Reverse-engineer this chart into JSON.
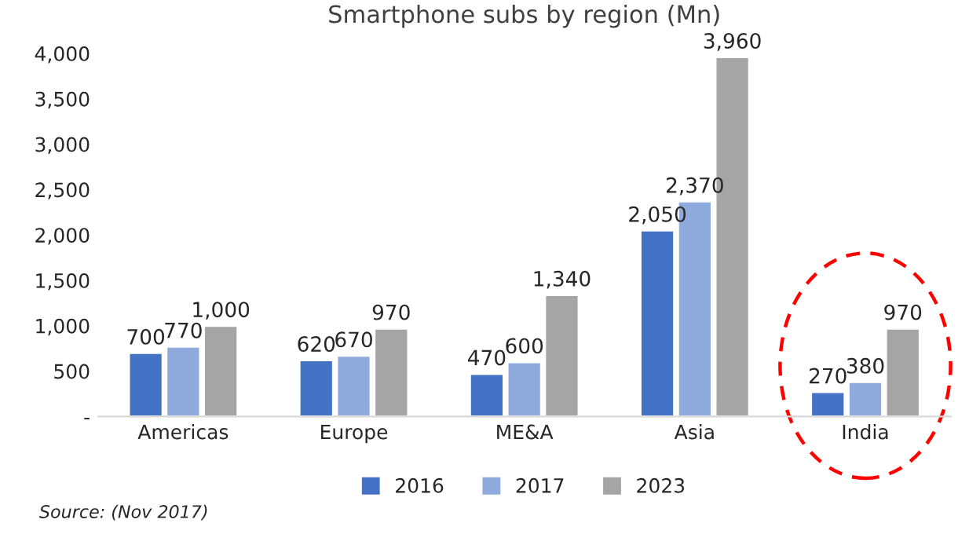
{
  "chart_data": {
    "type": "bar",
    "title": "Smartphone subs by region (Mn)",
    "categories": [
      "Americas",
      "Europe",
      "ME&A",
      "Asia",
      "India"
    ],
    "series": [
      {
        "name": "2016",
        "color": "#4472c4",
        "values": [
          700,
          620,
          470,
          2050,
          270
        ]
      },
      {
        "name": "2017",
        "color": "#8faadc",
        "values": [
          770,
          670,
          600,
          2370,
          380
        ]
      },
      {
        "name": "2023",
        "color": "#a5a5a5",
        "values": [
          1000,
          970,
          1340,
          3960,
          970
        ]
      }
    ],
    "ylim": [
      0,
      4000
    ],
    "yticks": [
      {
        "value": 0,
        "label": "-"
      },
      {
        "value": 500,
        "label": "500"
      },
      {
        "value": 1000,
        "label": "1,000"
      },
      {
        "value": 1500,
        "label": "1,500"
      },
      {
        "value": 2000,
        "label": "2,000"
      },
      {
        "value": 2500,
        "label": "2,500"
      },
      {
        "value": 3000,
        "label": "3,000"
      },
      {
        "value": 3500,
        "label": "3,500"
      },
      {
        "value": 4000,
        "label": "4,000"
      }
    ],
    "value_labels": [
      [
        "700",
        "620",
        "470",
        "2,050",
        "270"
      ],
      [
        "770",
        "670",
        "600",
        "2,370",
        "380"
      ],
      [
        "1,000",
        "970",
        "1,340",
        "3,960",
        "970"
      ]
    ],
    "legend": "bottom",
    "grid": false,
    "annotations": [
      "Source: (Nov 2017)"
    ]
  }
}
